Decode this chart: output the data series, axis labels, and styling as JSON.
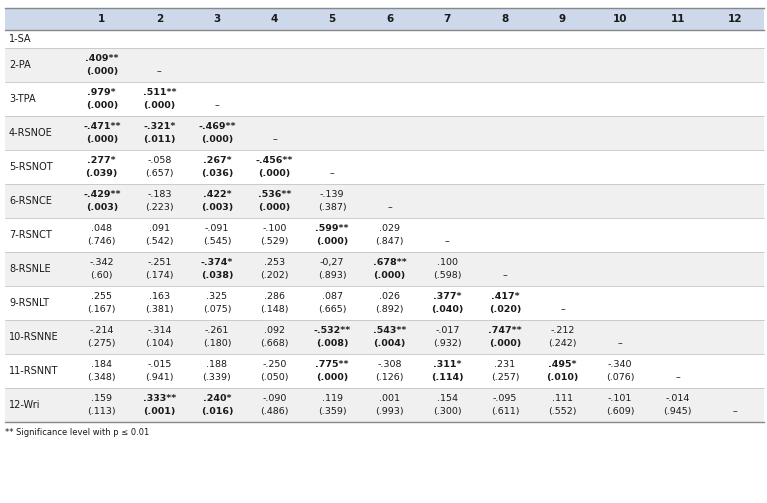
{
  "col_headers": [
    "",
    "1",
    "2",
    "3",
    "4",
    "5",
    "6",
    "7",
    "8",
    "9",
    "10",
    "11",
    "12"
  ],
  "rows": [
    {
      "label": "1-SA",
      "line1": [
        "",
        "",
        "",
        "",
        "",
        "",
        "",
        "",
        "",
        "",
        "",
        ""
      ],
      "line2": [
        "",
        "",
        "",
        "",
        "",
        "",
        "",
        "",
        "",
        "",
        "",
        ""
      ]
    },
    {
      "label": "2-PA",
      "line1": [
        ".409**",
        "",
        "",
        "",
        "",
        "",
        "",
        "",
        "",
        "",
        "",
        ""
      ],
      "line2": [
        "(.000)",
        "–",
        "",
        "",
        "",
        "",
        "",
        "",
        "",
        "",
        "",
        ""
      ]
    },
    {
      "label": "3-TPA",
      "line1": [
        ".979*",
        ".511**",
        "",
        "",
        "",
        "",
        "",
        "",
        "",
        "",
        "",
        ""
      ],
      "line2": [
        "(.000)",
        "(.000)",
        "–",
        "",
        "",
        "",
        "",
        "",
        "",
        "",
        "",
        ""
      ]
    },
    {
      "label": "4-RSNOE",
      "line1": [
        "-.471**",
        "-.321*",
        "-.469**",
        "",
        "",
        "",
        "",
        "",
        "",
        "",
        "",
        ""
      ],
      "line2": [
        "(.000)",
        "(.011)",
        "(.000)",
        "–",
        "",
        "",
        "",
        "",
        "",
        "",
        "",
        ""
      ]
    },
    {
      "label": "5-RSNOT",
      "line1": [
        ".277*",
        "-.058",
        ".267*",
        "-.456**",
        "",
        "",
        "",
        "",
        "",
        "",
        "",
        ""
      ],
      "line2": [
        "(.039)",
        "(.657)",
        "(.036)",
        "(.000)",
        "–",
        "",
        "",
        "",
        "",
        "",
        "",
        ""
      ]
    },
    {
      "label": "6-RSNCE",
      "line1": [
        "-.429**",
        "-.183",
        ".422*",
        ".536**",
        "-.139",
        "",
        "",
        "",
        "",
        "",
        "",
        ""
      ],
      "line2": [
        "(.003)",
        "(.223)",
        "(.003)",
        "(.000)",
        "(.387)",
        "–",
        "",
        "",
        "",
        "",
        "",
        ""
      ]
    },
    {
      "label": "7-RSNCT",
      "line1": [
        ".048",
        ".091",
        "-.091",
        "-.100",
        ".599**",
        ".029",
        "",
        "",
        "",
        "",
        "",
        ""
      ],
      "line2": [
        "(.746)",
        "(.542)",
        "(.545)",
        "(.529)",
        "(.000)",
        "(.847)",
        "–",
        "",
        "",
        "",
        "",
        ""
      ]
    },
    {
      "label": "8-RSNLE",
      "line1": [
        "-.342",
        "-.251",
        "-.374*",
        ".253",
        "-0,27",
        ".678**",
        ".100",
        "",
        "",
        "",
        "",
        ""
      ],
      "line2": [
        "(.60)",
        "(.174)",
        "(.038)",
        "(.202)",
        "(.893)",
        "(.000)",
        "(.598)",
        "–",
        "",
        "",
        "",
        ""
      ]
    },
    {
      "label": "9-RSNLT",
      "line1": [
        ".255",
        ".163",
        ".325",
        ".286",
        ".087",
        ".026",
        ".377*",
        ".417*",
        "",
        "",
        "",
        ""
      ],
      "line2": [
        "(.167)",
        "(.381)",
        "(.075)",
        "(.148)",
        "(.665)",
        "(.892)",
        "(.040)",
        "(.020)",
        "–",
        "",
        "",
        ""
      ]
    },
    {
      "label": "10-RSNNE",
      "line1": [
        "-.214",
        "-.314",
        "-.261",
        ".092",
        "-.532**",
        ".543**",
        "-.017",
        ".747**",
        "-.212",
        "",
        "",
        ""
      ],
      "line2": [
        "(.275)",
        "(.104)",
        "(.180)",
        "(.668)",
        "(.008)",
        "(.004)",
        "(.932)",
        "(.000)",
        "(.242)",
        "–",
        "",
        ""
      ]
    },
    {
      "label": "11-RSNNT",
      "line1": [
        ".184",
        "-.015",
        ".188",
        "-.250",
        ".775**",
        "-.308",
        ".311*",
        ".231",
        ".495*",
        "-.340",
        "",
        ""
      ],
      "line2": [
        "(.348)",
        "(.941)",
        "(.339)",
        "(.050)",
        "(.000)",
        "(.126)",
        "(.114)",
        "(.257)",
        "(.010)",
        "(.076)",
        "–",
        ""
      ]
    },
    {
      "label": "12-Wri",
      "line1": [
        ".159",
        ".333**",
        ".240*",
        "-.090",
        ".119",
        ".001",
        ".154",
        "-.095",
        ".111",
        "-.101",
        "-.014",
        ""
      ],
      "line2": [
        "(.113)",
        "(.001)",
        "(.016)",
        "(.486)",
        "(.359)",
        "(.993)",
        "(.300)",
        "(.611)",
        "(.552)",
        "(.609)",
        "(.945)",
        "–"
      ]
    }
  ],
  "bold_line1": {
    "2-PA": [
      true,
      false,
      false,
      false,
      false,
      false,
      false,
      false,
      false,
      false,
      false,
      false
    ],
    "3-TPA": [
      true,
      true,
      false,
      false,
      false,
      false,
      false,
      false,
      false,
      false,
      false,
      false
    ],
    "4-RSNOE": [
      true,
      true,
      true,
      false,
      false,
      false,
      false,
      false,
      false,
      false,
      false,
      false
    ],
    "5-RSNOT": [
      true,
      false,
      true,
      true,
      false,
      false,
      false,
      false,
      false,
      false,
      false,
      false
    ],
    "6-RSNCE": [
      true,
      false,
      true,
      true,
      false,
      false,
      false,
      false,
      false,
      false,
      false,
      false
    ],
    "7-RSNCT": [
      false,
      false,
      false,
      false,
      true,
      false,
      false,
      false,
      false,
      false,
      false,
      false
    ],
    "8-RSNLE": [
      false,
      false,
      true,
      false,
      false,
      true,
      false,
      false,
      false,
      false,
      false,
      false
    ],
    "9-RSNLT": [
      false,
      false,
      false,
      false,
      false,
      false,
      true,
      true,
      false,
      false,
      false,
      false
    ],
    "10-RSNNE": [
      false,
      false,
      false,
      false,
      true,
      true,
      false,
      true,
      false,
      false,
      false,
      false
    ],
    "11-RSNNT": [
      false,
      false,
      false,
      false,
      true,
      false,
      true,
      false,
      true,
      false,
      false,
      false
    ],
    "12-Wri": [
      false,
      true,
      true,
      false,
      false,
      false,
      false,
      false,
      false,
      false,
      false,
      false
    ]
  },
  "bold_line2": {
    "2-PA": [
      true,
      false,
      false,
      false,
      false,
      false,
      false,
      false,
      false,
      false,
      false,
      false
    ],
    "3-TPA": [
      true,
      true,
      false,
      false,
      false,
      false,
      false,
      false,
      false,
      false,
      false,
      false
    ],
    "4-RSNOE": [
      true,
      true,
      true,
      false,
      false,
      false,
      false,
      false,
      false,
      false,
      false,
      false
    ],
    "5-RSNOT": [
      true,
      false,
      true,
      true,
      false,
      false,
      false,
      false,
      false,
      false,
      false,
      false
    ],
    "6-RSNCE": [
      true,
      false,
      true,
      true,
      false,
      false,
      false,
      false,
      false,
      false,
      false,
      false
    ],
    "7-RSNCT": [
      false,
      false,
      false,
      false,
      true,
      false,
      false,
      false,
      false,
      false,
      false,
      false
    ],
    "8-RSNLE": [
      false,
      false,
      true,
      false,
      false,
      true,
      false,
      false,
      false,
      false,
      false,
      false
    ],
    "9-RSNLT": [
      false,
      false,
      false,
      false,
      false,
      false,
      true,
      true,
      false,
      false,
      false,
      false
    ],
    "10-RSNNE": [
      false,
      false,
      false,
      false,
      true,
      true,
      false,
      true,
      false,
      false,
      false,
      false
    ],
    "11-RSNNT": [
      false,
      false,
      false,
      false,
      true,
      false,
      true,
      false,
      true,
      false,
      false,
      false
    ],
    "12-Wri": [
      false,
      true,
      true,
      false,
      false,
      false,
      false,
      false,
      false,
      false,
      false,
      false
    ]
  },
  "header_bg": "#cdd8ea",
  "row_bg_even": "#ffffff",
  "row_bg_odd": "#f0f0f0",
  "text_color": "#1a1a1a",
  "footnote": "** Significance level with p ≤ 0.01",
  "fig_w": 7.67,
  "fig_h": 5.03,
  "dpi": 100
}
